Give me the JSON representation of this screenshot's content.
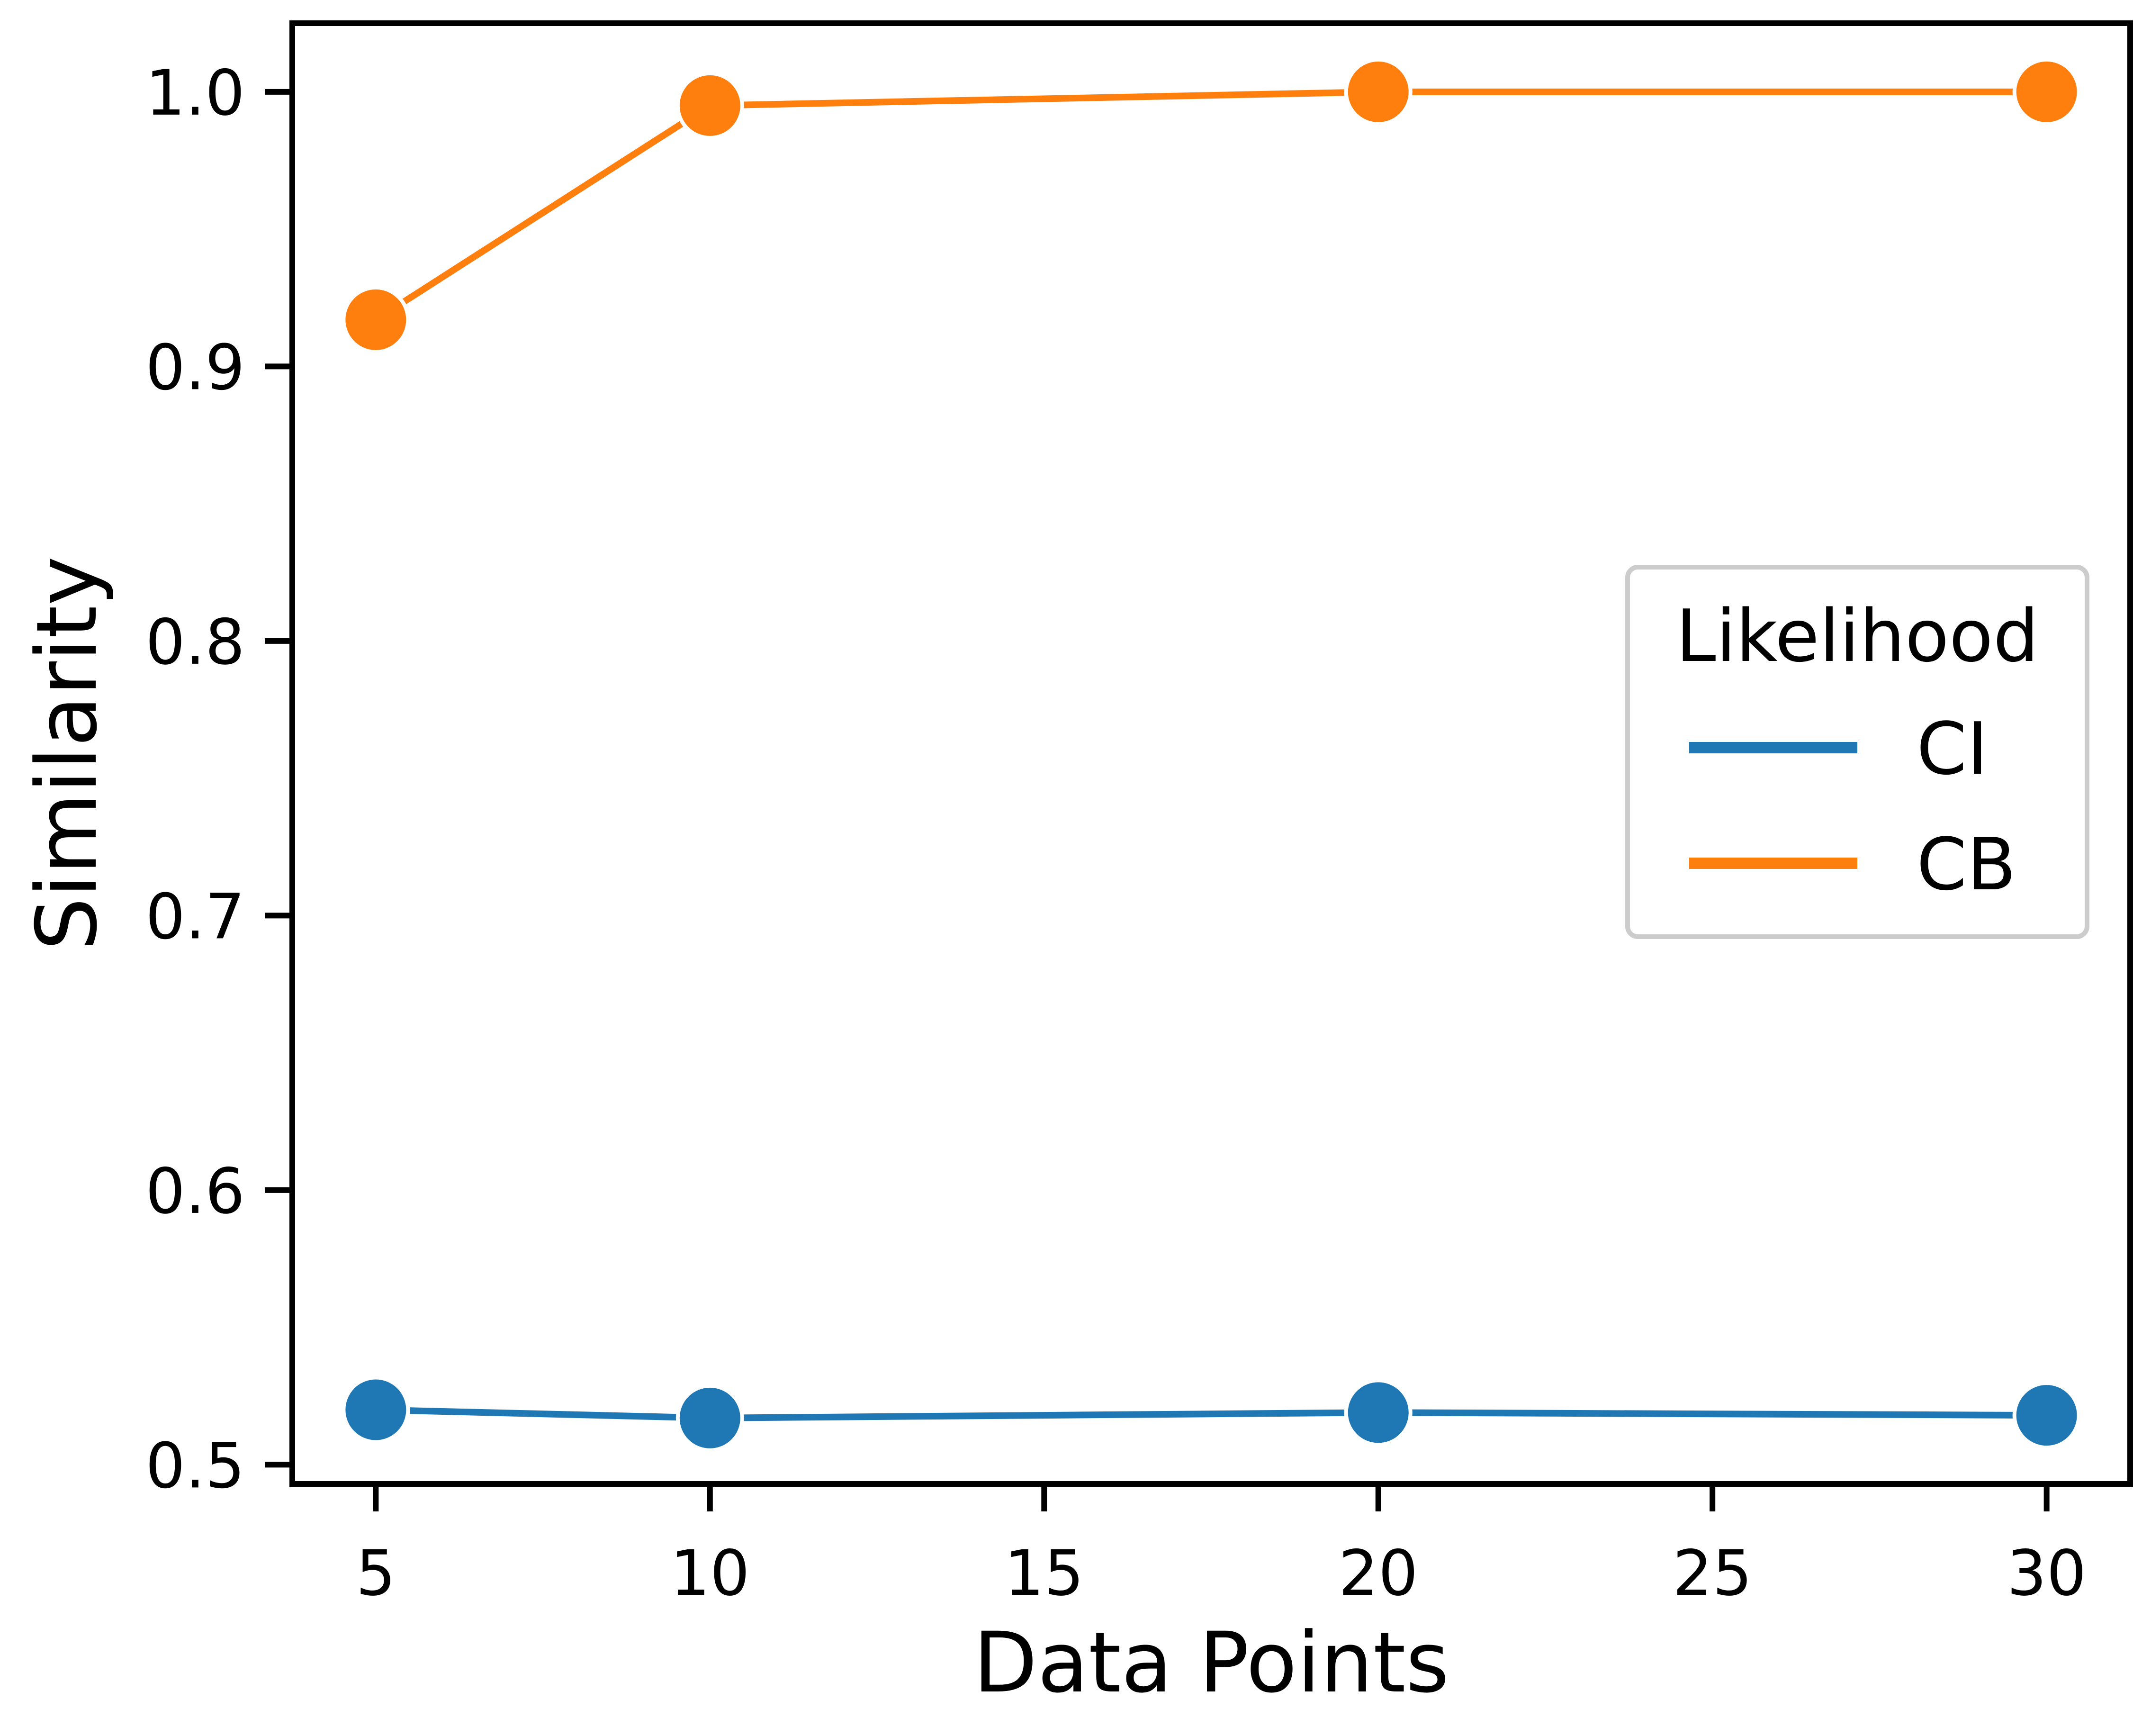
{
  "chart_data": {
    "type": "line",
    "title": "",
    "xlabel": "Data Points",
    "ylabel": "Similarity",
    "xlim": [
      3.75,
      31.25
    ],
    "ylim": [
      0.493,
      1.025
    ],
    "xticks": [
      5,
      10,
      15,
      20,
      25,
      30
    ],
    "xtick_labels": [
      "5",
      "10",
      "15",
      "20",
      "25",
      "30"
    ],
    "yticks": [
      0.5,
      0.6,
      0.7,
      0.8,
      0.9,
      1.0
    ],
    "ytick_labels": [
      "0.5",
      "0.6",
      "0.7",
      "0.8",
      "0.9",
      "1.0"
    ],
    "grid": false,
    "legend": {
      "title": "Likelihood",
      "placement": "center-right"
    },
    "x": [
      5,
      10,
      20,
      30
    ],
    "series": [
      {
        "name": "CI",
        "color": "#1f77b4",
        "values": [
          0.52,
          0.517,
          0.519,
          0.518
        ]
      },
      {
        "name": "CB",
        "color": "#ff7f0e",
        "values": [
          0.917,
          0.995,
          1.0,
          1.0
        ]
      }
    ]
  }
}
